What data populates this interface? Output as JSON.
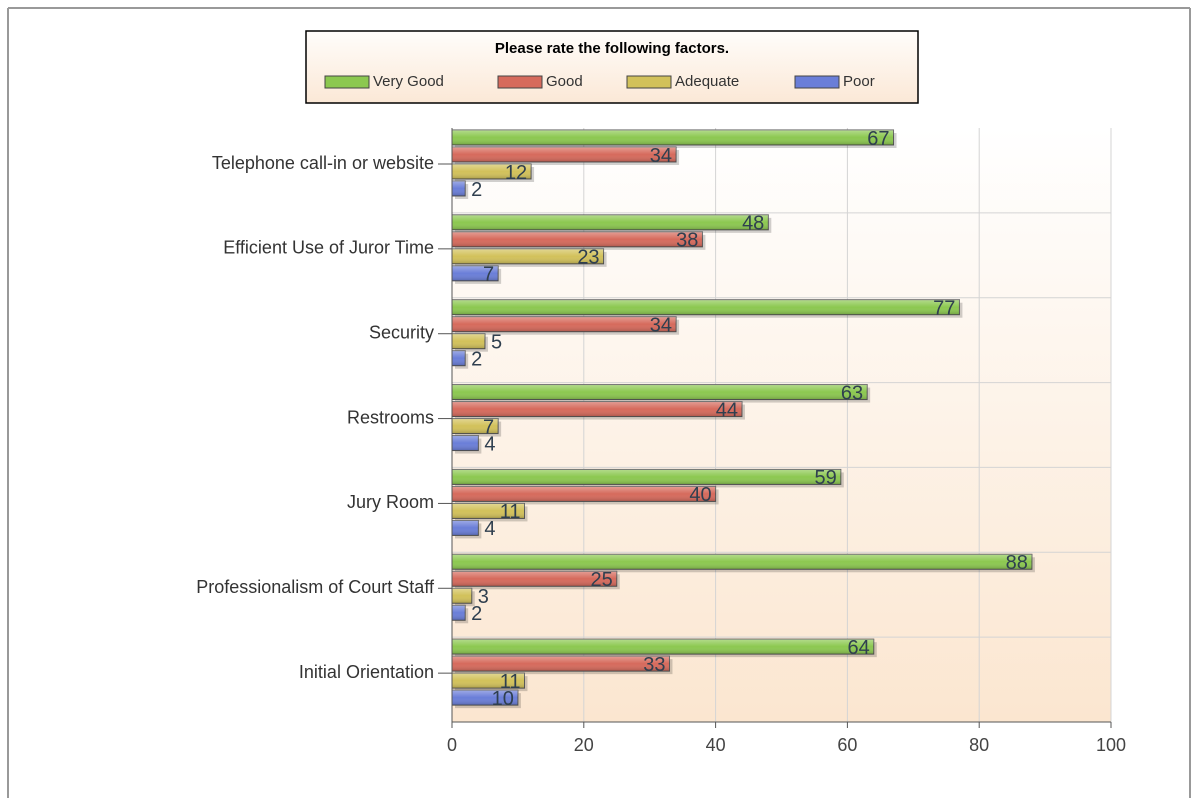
{
  "chart_data": {
    "type": "bar",
    "orientation": "horizontal",
    "title": "Please rate the following factors.",
    "categories": [
      "Telephone call-in or website",
      "Efficient Use of Juror Time",
      "Security",
      "Restrooms",
      "Jury Room",
      "Professionalism of Court Staff",
      "Initial Orientation"
    ],
    "series": [
      {
        "name": "Very Good",
        "color": "#8cc850",
        "values": [
          67,
          48,
          77,
          63,
          59,
          88,
          64
        ]
      },
      {
        "name": "Good",
        "color": "#d66a5c",
        "values": [
          34,
          38,
          34,
          44,
          40,
          25,
          33
        ]
      },
      {
        "name": "Adequate",
        "color": "#d2c15a",
        "values": [
          12,
          23,
          5,
          7,
          11,
          3,
          11
        ]
      },
      {
        "name": "Poor",
        "color": "#6a7ed8",
        "values": [
          2,
          7,
          2,
          4,
          4,
          2,
          10
        ]
      }
    ],
    "xlim": [
      0,
      100
    ],
    "xticks": [
      0,
      20,
      40,
      60,
      80,
      100
    ],
    "grid": true
  }
}
